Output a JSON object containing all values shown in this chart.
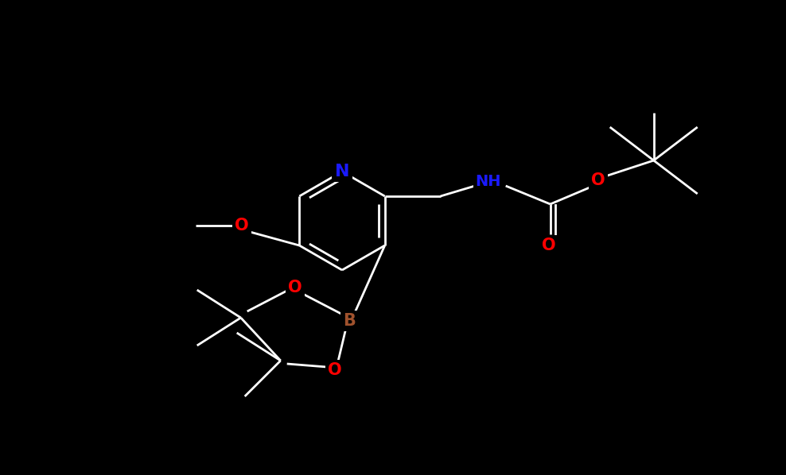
{
  "background_color": "#000000",
  "atom_colors": {
    "N": "#1a1aff",
    "O": "#ff0000",
    "B": "#a0522d",
    "NH": "#1a1aff"
  },
  "figsize": [
    9.88,
    5.98
  ],
  "dpi": 100,
  "bond_lw": 2.0,
  "font_size": 14
}
